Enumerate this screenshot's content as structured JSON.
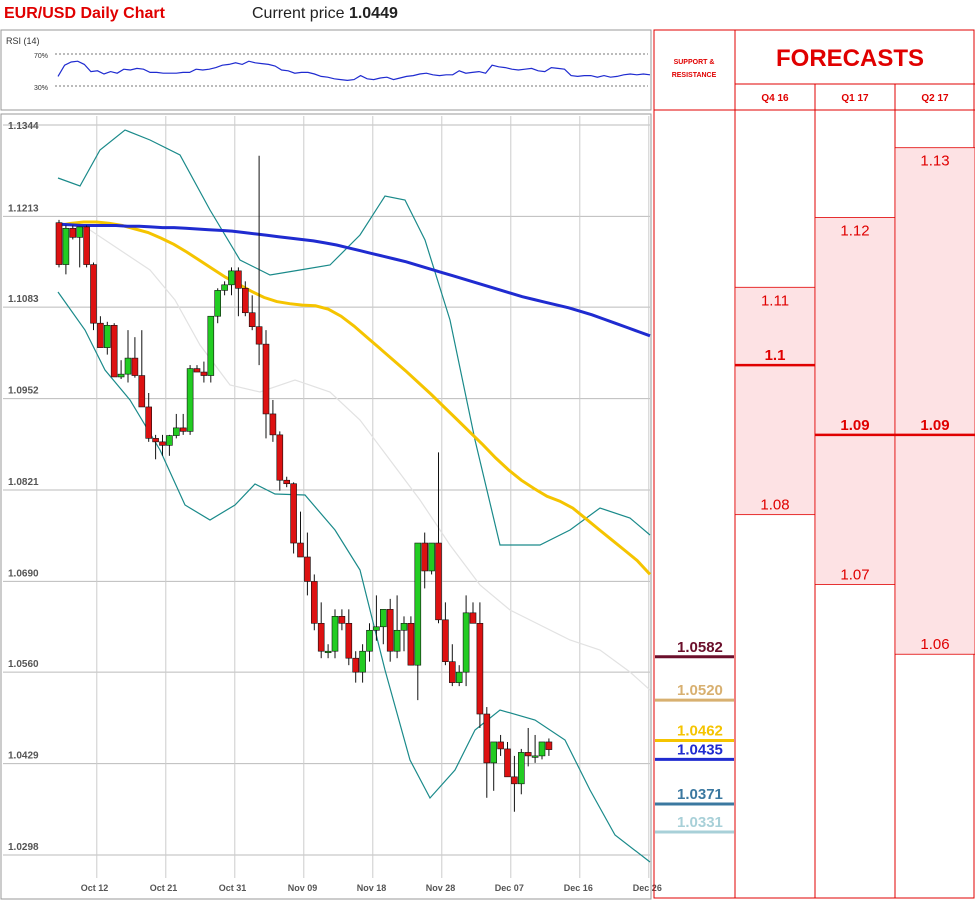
{
  "header": {
    "title": "EUR/USD Daily Chart",
    "price_label": "Current price",
    "price_value": "1.0449"
  },
  "rsi": {
    "label": "RSI (14)",
    "upper_level": "70%",
    "lower_level": "30%",
    "values": [
      42,
      56,
      60,
      61,
      57,
      48,
      49,
      45,
      48,
      46,
      51,
      50,
      52,
      51,
      47,
      47,
      46,
      46,
      46,
      47,
      47,
      51,
      50,
      51,
      53,
      56,
      57,
      59,
      57,
      61,
      59,
      58,
      57,
      55,
      50,
      49,
      46,
      47,
      47,
      45,
      42,
      41,
      39,
      38,
      37,
      38,
      43,
      39,
      38,
      40,
      41,
      38,
      40,
      42,
      43,
      45,
      46,
      44,
      43,
      44,
      44,
      49,
      46,
      47,
      48,
      46,
      56,
      54,
      53,
      51,
      50,
      51,
      52,
      49,
      48,
      53,
      52,
      51,
      43,
      42,
      43,
      43,
      41,
      43,
      41,
      42,
      44,
      45,
      44,
      45,
      44
    ]
  },
  "chart_data": {
    "type": "candlestick",
    "title": "EUR/USD Daily Chart",
    "y_ticks": [
      "1.1344",
      "1.1213",
      "1.1083",
      "1.0952",
      "1.0821",
      "1.0690",
      "1.0560",
      "1.0429",
      "1.0298"
    ],
    "ylim": [
      1.0298,
      1.1344
    ],
    "x_ticks": [
      "Oct 12",
      "Oct 21",
      "Oct 31",
      "Nov 09",
      "Nov 18",
      "Nov 28",
      "Dec 07",
      "Dec 16",
      "Dec 26"
    ],
    "x_tick_index": [
      2,
      12,
      22,
      32,
      42,
      52,
      62,
      72,
      82
    ],
    "grid": true,
    "ohlc": [
      [
        1.1204,
        1.1208,
        1.114,
        1.1144
      ],
      [
        1.1144,
        1.12,
        1.113,
        1.1196
      ],
      [
        1.1196,
        1.12,
        1.118,
        1.1183
      ],
      [
        1.1183,
        1.1198,
        1.114,
        1.1198
      ],
      [
        1.1198,
        1.12,
        1.114,
        1.1144
      ],
      [
        1.1144,
        1.1147,
        1.105,
        1.106
      ],
      [
        1.106,
        1.107,
        1.1025,
        1.1025
      ],
      [
        1.1025,
        1.1062,
        1.1015,
        1.1057
      ],
      [
        1.1057,
        1.106,
        1.099,
        1.0983
      ],
      [
        1.0983,
        1.1007,
        1.098,
        1.0987
      ],
      [
        1.0987,
        1.105,
        1.0975,
        1.101
      ],
      [
        1.101,
        1.104,
        1.0982,
        1.0985
      ],
      [
        1.0985,
        1.105,
        1.094,
        1.094
      ],
      [
        1.094,
        1.096,
        1.089,
        1.0895
      ],
      [
        1.0895,
        1.09,
        1.0865,
        1.089
      ],
      [
        1.089,
        1.09,
        1.087,
        1.0885
      ],
      [
        1.0885,
        1.09,
        1.087,
        1.0899
      ],
      [
        1.0899,
        1.093,
        1.0895,
        1.091
      ],
      [
        1.091,
        1.093,
        1.09,
        1.0905
      ],
      [
        1.0905,
        1.1,
        1.09,
        1.0995
      ],
      [
        1.0995,
        1.1,
        1.099,
        1.099
      ],
      [
        1.099,
        1.1005,
        1.0975,
        1.0985
      ],
      [
        1.0985,
        1.107,
        1.0975,
        1.107
      ],
      [
        1.107,
        1.111,
        1.106,
        1.1107
      ],
      [
        1.1107,
        1.112,
        1.11,
        1.1115
      ],
      [
        1.1115,
        1.114,
        1.11,
        1.1135
      ],
      [
        1.1135,
        1.114,
        1.107,
        1.111
      ],
      [
        1.111,
        1.112,
        1.107,
        1.1075
      ],
      [
        1.1075,
        1.11,
        1.105,
        1.1055
      ],
      [
        1.1055,
        1.13,
        1.1,
        1.103
      ],
      [
        1.103,
        1.105,
        1.0895,
        1.093
      ],
      [
        1.093,
        1.095,
        1.089,
        1.09
      ],
      [
        1.09,
        1.0905,
        1.082,
        1.0835
      ],
      [
        1.0835,
        1.084,
        1.0825,
        1.083
      ],
      [
        1.083,
        1.0832,
        1.073,
        1.0745
      ],
      [
        1.0745,
        1.079,
        1.0725,
        1.0725
      ],
      [
        1.0725,
        1.076,
        1.067,
        1.069
      ],
      [
        1.069,
        1.07,
        1.062,
        1.063
      ],
      [
        1.063,
        1.066,
        1.058,
        1.059
      ],
      [
        1.059,
        1.06,
        1.058,
        1.059
      ],
      [
        1.059,
        1.065,
        1.058,
        1.064
      ],
      [
        1.064,
        1.065,
        1.062,
        1.063
      ],
      [
        1.063,
        1.065,
        1.057,
        1.058
      ],
      [
        1.058,
        1.059,
        1.0545,
        1.056
      ],
      [
        1.056,
        1.06,
        1.0545,
        1.059
      ],
      [
        1.059,
        1.063,
        1.0575,
        1.062
      ],
      [
        1.062,
        1.067,
        1.0605,
        1.0625
      ],
      [
        1.0625,
        1.065,
        1.06,
        1.065
      ],
      [
        1.065,
        1.0665,
        1.0575,
        1.059
      ],
      [
        1.059,
        1.067,
        1.058,
        1.062
      ],
      [
        1.062,
        1.064,
        1.059,
        1.063
      ],
      [
        1.063,
        1.064,
        1.057,
        1.057
      ],
      [
        1.057,
        1.0745,
        1.052,
        1.0745
      ],
      [
        1.0745,
        1.076,
        1.068,
        1.0705
      ],
      [
        1.0705,
        1.0745,
        1.07,
        1.0745
      ],
      [
        1.0745,
        1.0875,
        1.063,
        1.0635
      ],
      [
        1.0635,
        1.066,
        1.057,
        1.0575
      ],
      [
        1.0575,
        1.06,
        1.054,
        1.0545
      ],
      [
        1.0545,
        1.057,
        1.054,
        1.056
      ],
      [
        1.056,
        1.067,
        1.054,
        1.0645
      ],
      [
        1.0645,
        1.066,
        1.063,
        1.063
      ],
      [
        1.063,
        1.066,
        1.048,
        1.05
      ],
      [
        1.05,
        1.051,
        1.038,
        1.043
      ],
      [
        1.043,
        1.0455,
        1.039,
        1.046
      ],
      [
        1.046,
        1.047,
        1.044,
        1.045
      ],
      [
        1.045,
        1.046,
        1.041,
        1.041
      ],
      [
        1.041,
        1.044,
        1.036,
        1.04
      ],
      [
        1.04,
        1.045,
        1.0385,
        1.0445
      ],
      [
        1.0445,
        1.048,
        1.0425,
        1.044
      ],
      [
        1.044,
        1.047,
        1.043,
        1.044
      ],
      [
        1.044,
        1.046,
        1.0435,
        1.046
      ],
      [
        1.046,
        1.0465,
        1.044,
        1.0449
      ]
    ],
    "ma_blue": [
      1.1202,
      1.1201,
      1.12,
      1.12,
      1.12,
      1.12,
      1.1199,
      1.1199,
      1.1198,
      1.1197,
      1.1197,
      1.1196,
      1.1195,
      1.1194,
      1.1193,
      1.1192,
      1.119,
      1.1188,
      1.1186,
      1.1184,
      1.1182,
      1.118,
      1.1178,
      1.1175,
      1.1172,
      1.1168,
      1.1164,
      1.116,
      1.1156,
      1.1152,
      1.1148,
      1.1143,
      1.1138,
      1.1133,
      1.1128,
      1.1123,
      1.1118,
      1.1113,
      1.1108,
      1.1103,
      1.1098,
      1.1094,
      1.109,
      1.1086,
      1.1082,
      1.1077,
      1.1072,
      1.1066,
      1.106,
      1.1054,
      1.1048,
      1.1042
    ],
    "ma_yellow": [
      1.12,
      1.1203,
      1.1205,
      1.1205,
      1.1203,
      1.12,
      1.1195,
      1.119,
      1.1182,
      1.1173,
      1.1162,
      1.115,
      1.1138,
      1.1126,
      1.1116,
      1.1106,
      1.1097,
      1.1091,
      1.1088,
      1.1086,
      1.1085,
      1.108,
      1.107,
      1.1056,
      1.104,
      1.1024,
      1.1008,
      1.0992,
      1.0975,
      1.0958,
      1.094,
      1.0922,
      1.0904,
      1.0886,
      1.0867,
      1.085,
      1.0835,
      1.0823,
      1.0812,
      1.0805,
      1.0795,
      1.078,
      1.0765,
      1.075,
      1.0735,
      1.072,
      1.07
    ]
  },
  "levels": [
    {
      "label": "1.0582",
      "color": "#6b0f2b"
    },
    {
      "label": "1.0520",
      "color": "#d8b070"
    },
    {
      "label": "1.0462",
      "color": "#f5c400"
    },
    {
      "label": "1.0435",
      "color": "#1f2bd0"
    },
    {
      "label": "1.0371",
      "color": "#3b78a0"
    },
    {
      "label": "1.0331",
      "color": "#a8d0d8"
    }
  ],
  "forecast": {
    "title": "FORECASTS",
    "sr_label_1": "SUPPORT &",
    "sr_label_2": "RESISTANCE",
    "columns": [
      {
        "name": "Q4 16",
        "high": "1.11",
        "mid": "1.1",
        "low": "1.08"
      },
      {
        "name": "Q1 17",
        "high": "1.12",
        "mid": "1.09",
        "low": "1.07"
      },
      {
        "name": "Q2 17",
        "high": "1.13",
        "mid": "1.09",
        "low": "1.06"
      }
    ]
  },
  "colors": {
    "up": "#22cc22",
    "down": "#dd1111",
    "ma_blue": "#1f2bd0",
    "ma_yellow": "#f5c400",
    "bollinger": "#1a8a8a",
    "forecast_red": "#e00000",
    "forecast_fill": "#fde2e4"
  }
}
